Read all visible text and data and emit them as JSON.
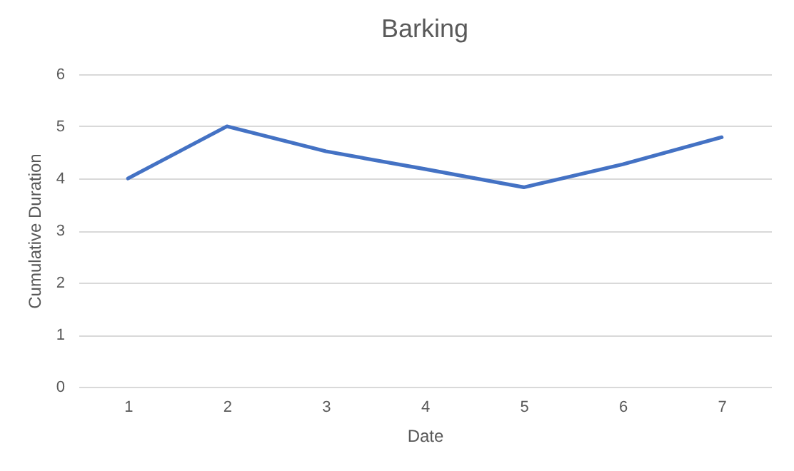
{
  "chart_data": {
    "type": "line",
    "title": "Barking",
    "xlabel": "Date",
    "ylabel": "Cumulative Duration",
    "categories": [
      "1",
      "2",
      "3",
      "4",
      "5",
      "6",
      "7"
    ],
    "series": [
      {
        "color": "#4472c4",
        "values": [
          4.0,
          5.0,
          4.52,
          4.18,
          3.83,
          4.27,
          4.79
        ]
      }
    ],
    "ylim": [
      0,
      6
    ],
    "yticks": [
      0,
      1,
      2,
      3,
      4,
      5,
      6
    ],
    "grid": "y",
    "marker": "none",
    "line_style": "solid"
  }
}
